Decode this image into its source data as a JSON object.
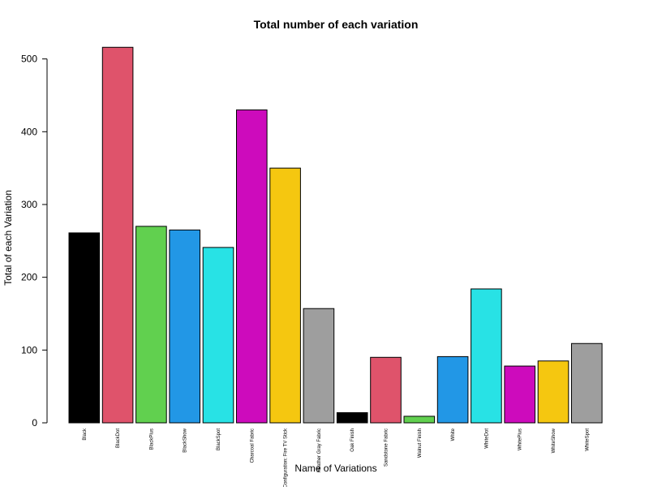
{
  "chart_data": {
    "type": "bar",
    "title": "Total number of each variation",
    "xlabel": "Name of Variations",
    "ylabel": "Total of each Variation",
    "ylim": [
      0,
      520
    ],
    "yticks": [
      0,
      100,
      200,
      300,
      400,
      500
    ],
    "grid": false,
    "categories": [
      "Black",
      "BlackDot",
      "BlackPlus",
      "BlackShow",
      "BlackSpot",
      "Charcoal Fabric",
      "Configuration: Fire TV Stick",
      "Heather Gray Fabric",
      "Oak Finish",
      "Sandstone Fabric",
      "Walnut Finish",
      "White",
      "WhiteDot",
      "WhitePlus",
      "WhiteShow",
      "WhiteSpot"
    ],
    "values": [
      261,
      516,
      270,
      265,
      241,
      430,
      350,
      157,
      14,
      90,
      9,
      91,
      184,
      78,
      85,
      109
    ],
    "colors": [
      "#000000",
      "#DF536B",
      "#61D04F",
      "#2297E6",
      "#28E2E5",
      "#CD0BBC",
      "#F5C710",
      "#9E9E9E",
      "#000000",
      "#DF536B",
      "#61D04F",
      "#2297E6",
      "#28E2E5",
      "#CD0BBC",
      "#F5C710",
      "#9E9E9E"
    ]
  }
}
